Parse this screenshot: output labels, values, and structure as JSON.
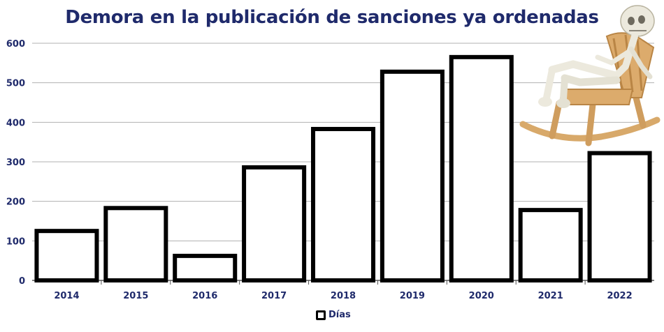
{
  "chart_data": {
    "type": "bar",
    "title": "Demora en la publicación de sanciones ya ordenadas",
    "categories": [
      "2014",
      "2015",
      "2016",
      "2017",
      "2018",
      "2019",
      "2020",
      "2021",
      "2022"
    ],
    "series": [
      {
        "name": "Días",
        "values": [
          125,
          183,
          62,
          286,
          383,
          528,
          565,
          178,
          322
        ]
      }
    ],
    "ylim": [
      0,
      600
    ],
    "yticks": [
      0,
      100,
      200,
      300,
      400,
      500,
      600
    ],
    "grid": true,
    "legend": "bottom",
    "colors": {
      "bar_fill": "#ffffff",
      "bar_stroke": "#000000",
      "text": "#1f2a6b",
      "grid": "#b0b0b0"
    }
  },
  "decoration": {
    "icon": "skeleton-rocking-chair-icon"
  }
}
